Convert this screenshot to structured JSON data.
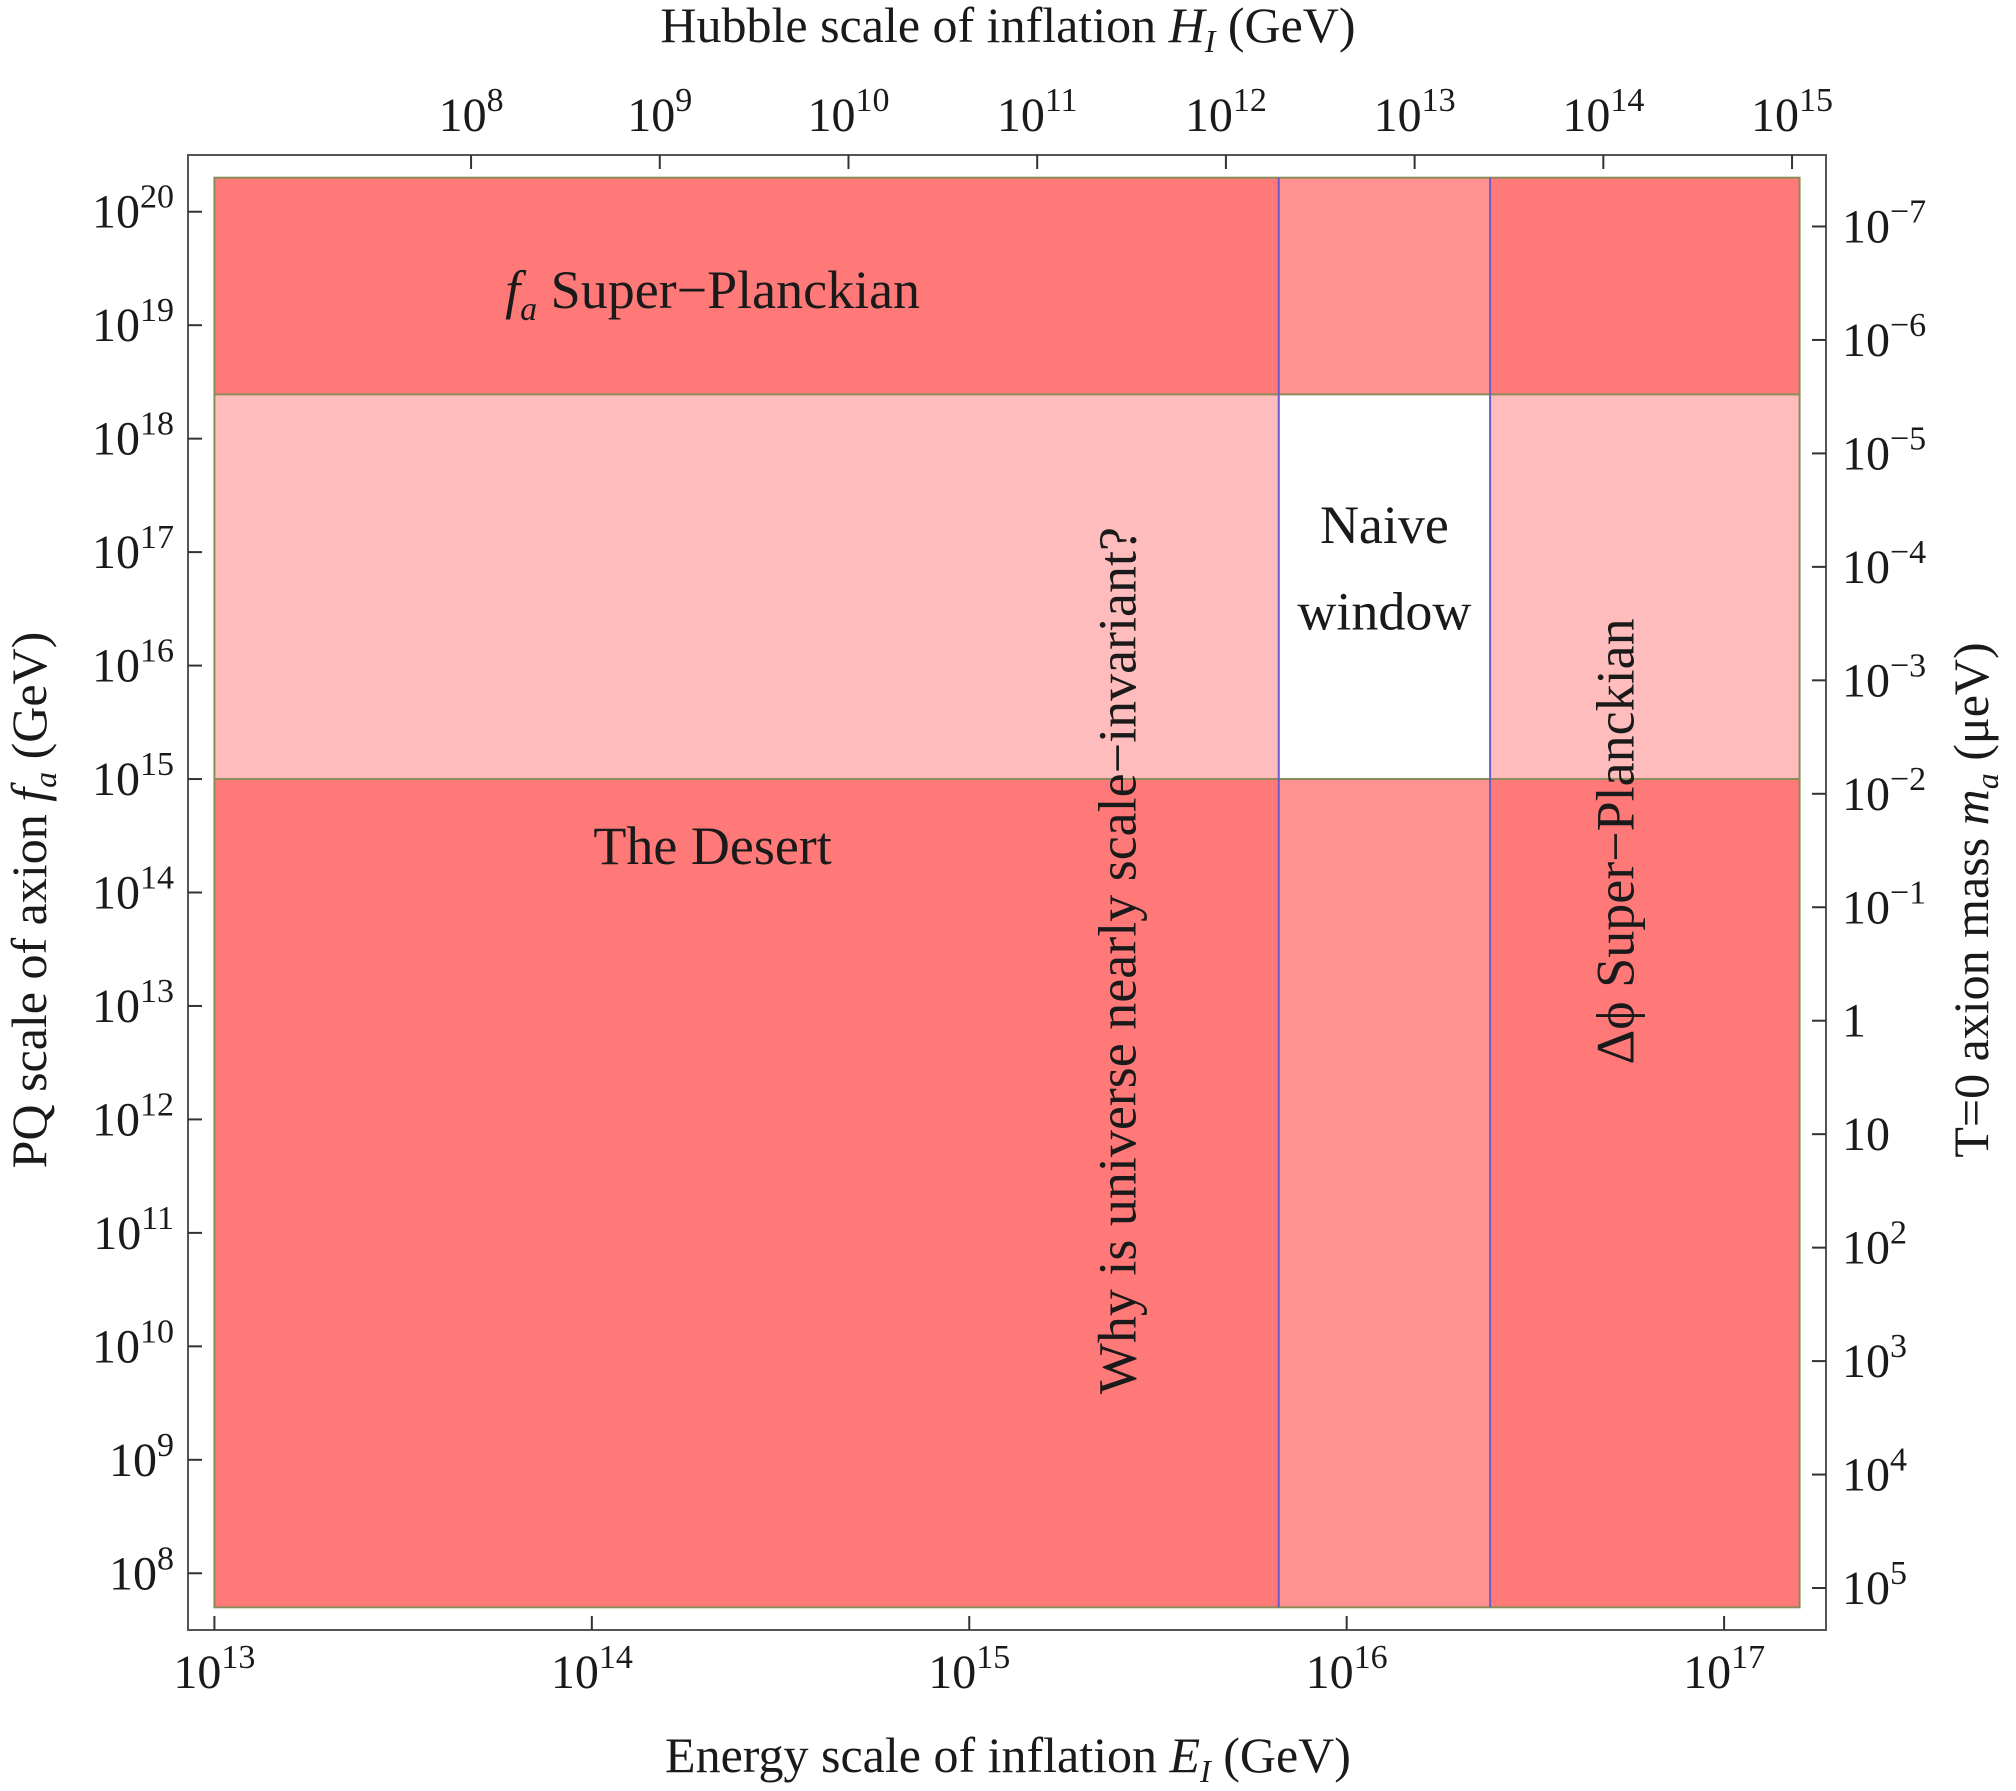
{
  "chart_data": {
    "type": "region",
    "xlabel": {
      "main": "Energy scale of inflation ",
      "var": "E",
      "sub": "I",
      "unit": " (GeV)"
    },
    "x2label": {
      "main": "Hubble scale of inflation ",
      "var": "H",
      "sub": "I",
      "unit": " (GeV)"
    },
    "ylabel": {
      "main": "PQ scale of axion ",
      "var": "f",
      "sub": "a",
      "unit": " (GeV)"
    },
    "y2label": {
      "main": "T=0 axion mass ",
      "var": "m",
      "sub": "a",
      "unit": " (μeV)"
    },
    "x_scale": "log",
    "y_scale": "log",
    "xlim_log10": [
      12.93,
      17.27
    ],
    "ylim_log10": [
      7.5,
      20.5
    ],
    "x_ticks": [
      {
        "v": 13,
        "base": "10",
        "exp": "13"
      },
      {
        "v": 14,
        "base": "10",
        "exp": "14"
      },
      {
        "v": 15,
        "base": "10",
        "exp": "15"
      },
      {
        "v": 16,
        "base": "10",
        "exp": "16"
      },
      {
        "v": 17,
        "base": "10",
        "exp": "17"
      }
    ],
    "x2_ticks": [
      {
        "v": 13.68,
        "base": "10",
        "exp": "8"
      },
      {
        "v": 14.18,
        "base": "10",
        "exp": "9"
      },
      {
        "v": 14.68,
        "base": "10",
        "exp": "10"
      },
      {
        "v": 15.18,
        "base": "10",
        "exp": "11"
      },
      {
        "v": 15.68,
        "base": "10",
        "exp": "12"
      },
      {
        "v": 16.18,
        "base": "10",
        "exp": "13"
      },
      {
        "v": 16.68,
        "base": "10",
        "exp": "14"
      },
      {
        "v": 17.18,
        "base": "10",
        "exp": "15"
      }
    ],
    "y_ticks": [
      {
        "v": 8,
        "base": "10",
        "exp": "8"
      },
      {
        "v": 9,
        "base": "10",
        "exp": "9"
      },
      {
        "v": 10,
        "base": "10",
        "exp": "10"
      },
      {
        "v": 11,
        "base": "10",
        "exp": "11"
      },
      {
        "v": 12,
        "base": "10",
        "exp": "12"
      },
      {
        "v": 13,
        "base": "10",
        "exp": "13"
      },
      {
        "v": 14,
        "base": "10",
        "exp": "14"
      },
      {
        "v": 15,
        "base": "10",
        "exp": "15"
      },
      {
        "v": 16,
        "base": "10",
        "exp": "16"
      },
      {
        "v": 17,
        "base": "10",
        "exp": "17"
      },
      {
        "v": 18,
        "base": "10",
        "exp": "18"
      },
      {
        "v": 19,
        "base": "10",
        "exp": "19"
      },
      {
        "v": 20,
        "base": "10",
        "exp": "20"
      }
    ],
    "y2_ticks": [
      {
        "v": 19.87,
        "base": "10",
        "exp": "−7"
      },
      {
        "v": 18.87,
        "base": "10",
        "exp": "−6"
      },
      {
        "v": 17.87,
        "base": "10",
        "exp": "−5"
      },
      {
        "v": 16.87,
        "base": "10",
        "exp": "−4"
      },
      {
        "v": 15.87,
        "base": "10",
        "exp": "−3"
      },
      {
        "v": 14.87,
        "base": "10",
        "exp": "−2"
      },
      {
        "v": 13.87,
        "base": "10",
        "exp": "−1"
      },
      {
        "v": 12.87,
        "base": "1",
        "exp": ""
      },
      {
        "v": 11.87,
        "base": "10",
        "exp": ""
      },
      {
        "v": 10.87,
        "base": "10",
        "exp": "2"
      },
      {
        "v": 9.87,
        "base": "10",
        "exp": "3"
      },
      {
        "v": 8.87,
        "base": "10",
        "exp": "4"
      },
      {
        "v": 7.87,
        "base": "10",
        "exp": "5"
      }
    ],
    "regions": [
      {
        "name": "The Desert",
        "x_log10": [
          13.0,
          17.2
        ],
        "y_log10": [
          7.7,
          15.0
        ],
        "color": "#ff5555",
        "opacity": 0.9
      },
      {
        "name": "f_a Super-Planckian",
        "x_log10": [
          13.0,
          17.2
        ],
        "y_log10": [
          18.39,
          20.3
        ],
        "color": "#ff5555",
        "opacity": 0.9
      },
      {
        "name": "Why is universe nearly scale-invariant?",
        "x_log10": [
          13.0,
          15.82
        ],
        "y_log10": [
          7.7,
          20.3
        ],
        "color": "#ff5555",
        "opacity": 0.55
      },
      {
        "name": "Δφ Super-Planckian",
        "x_log10": [
          16.38,
          17.2
        ],
        "y_log10": [
          7.7,
          20.3
        ],
        "color": "#ff5555",
        "opacity": 0.55
      }
    ],
    "window": {
      "name": "Naive window",
      "x_log10": [
        15.82,
        16.38
      ],
      "y_log10": [
        15.0,
        18.39
      ]
    },
    "annotations": {
      "fa_super": {
        "var": "f",
        "sub": "a",
        "text": " Super−Planckian",
        "x": 14.32,
        "y": 19.15,
        "rotate": 0
      },
      "desert": {
        "text": "The Desert",
        "x": 14.32,
        "y": 14.25,
        "rotate": 0
      },
      "scale_inv": {
        "text": "Why is universe nearly scale−invariant?",
        "x": 15.44,
        "y": 13.4,
        "rotate": -90
      },
      "naive_1": {
        "text": "Naive",
        "x": 16.1,
        "y": 17.08,
        "rotate": 0
      },
      "naive_2": {
        "text": "window",
        "x": 16.1,
        "y": 16.32,
        "rotate": 0
      },
      "dphi": {
        "text": "Δϕ Super−Planckian",
        "x": 16.76,
        "y": 14.45,
        "rotate": -90
      }
    },
    "colors": {
      "strong": "#ff5555",
      "light": "#ff9a9a",
      "frame": "#555555",
      "edge_green": "#8c8c5a",
      "edge_blue": "#6a5acd"
    }
  }
}
